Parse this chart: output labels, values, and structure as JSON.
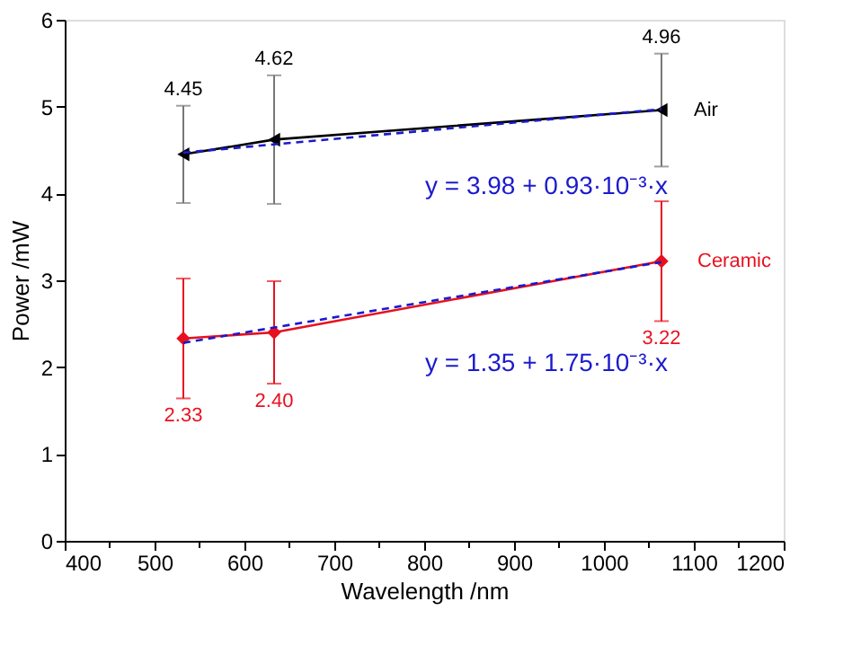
{
  "chart_data": {
    "type": "line",
    "xlabel": "Wavelength /nm",
    "ylabel": "Power /mW",
    "xlim": [
      400,
      1200
    ],
    "xticks": [
      400,
      {
        "value": 450,
        "label": null
      },
      500,
      {
        "value": 550,
        "label": null
      },
      600,
      {
        "value": 650,
        "label": null
      },
      700,
      {
        "value": 750,
        "label": null
      },
      800,
      {
        "value": 850,
        "label": null
      },
      900,
      {
        "value": 950,
        "label": null
      },
      1000,
      {
        "value": 1050,
        "label": null
      },
      1100,
      {
        "value": 1150,
        "label": null
      },
      1200
    ],
    "ylim": [
      0,
      6
    ],
    "yticks": [
      0,
      1,
      2,
      3,
      4,
      5,
      6
    ],
    "grid": false,
    "series": [
      {
        "name": "Air",
        "color": "#000000",
        "x": [
          532,
          633,
          1064
        ],
        "values": [
          4.45,
          4.62,
          4.96
        ],
        "errors": [
          0.56,
          0.74,
          0.65
        ],
        "value_labels": [
          "4.45",
          "4.62",
          "4.96"
        ],
        "marker": "triangle",
        "line_style": "solid"
      },
      {
        "name": "Ceramic",
        "color": "#e8101f",
        "x": [
          532,
          633,
          1064
        ],
        "values": [
          2.33,
          2.4,
          3.22
        ],
        "errors": [
          0.69,
          0.59,
          0.69
        ],
        "value_labels": [
          "2.33",
          "2.40",
          "3.22"
        ],
        "marker": "diamond",
        "line_style": "solid"
      },
      {
        "type": "line",
        "color": "#1a1acd",
        "x": [
          532,
          1064
        ],
        "values": [
          4.47,
          4.97
        ],
        "marker": "none",
        "line_style": "dashed"
      },
      {
        "type": "line",
        "color": "#1a1acd",
        "x": [
          532,
          1064
        ],
        "values": [
          2.28,
          3.21
        ],
        "marker": "none",
        "line_style": "dashed"
      }
    ],
    "annotations": [
      "y = 3.98 + 0.93·10⁻³·x",
      "y = 1.35 + 1.75·10⁻³·x"
    ]
  }
}
